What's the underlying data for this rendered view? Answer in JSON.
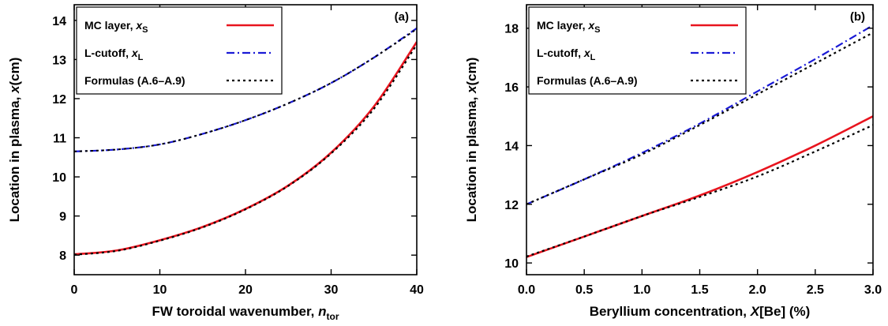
{
  "chart_data": [
    {
      "type": "line",
      "panel_label": "(a)",
      "xlabel": "FW toroidal wavenumber, ",
      "xlabel_var": "n",
      "xlabel_sub": "tor",
      "ylabel": "Location in plasma, ",
      "ylabel_var": "x",
      "ylabel_unit": "(cm)",
      "xlim": [
        0,
        40
      ],
      "ylim": [
        7.5,
        14.4
      ],
      "xticks": [
        "0",
        "10",
        "20",
        "30",
        "40"
      ],
      "xtick_values": [
        0,
        10,
        20,
        30,
        40
      ],
      "yticks": [
        "8",
        "9",
        "10",
        "11",
        "12",
        "13",
        "14"
      ],
      "ytick_values": [
        8,
        9,
        10,
        11,
        12,
        13,
        14
      ],
      "grid": false,
      "legend_position": "top-left",
      "x": [
        0,
        5,
        10,
        15,
        20,
        25,
        30,
        35,
        40
      ],
      "series": [
        {
          "name": "MC layer, ",
          "var": "x",
          "sub": "S",
          "color": "#e8141e",
          "style": "solid",
          "values": [
            8.02,
            8.12,
            8.38,
            8.72,
            9.18,
            9.78,
            10.62,
            11.8,
            13.45
          ]
        },
        {
          "name": "L-cutoff, ",
          "var": "x",
          "sub": "L",
          "color": "#1a1ad6",
          "style": "dashdot",
          "values": [
            10.65,
            10.7,
            10.83,
            11.1,
            11.45,
            11.88,
            12.4,
            13.05,
            13.8
          ]
        },
        {
          "name": "Formulas (A.6–A.9)",
          "var": "",
          "sub": "",
          "color": "#000000",
          "style": "dotted",
          "values": [
            8.01,
            8.11,
            8.37,
            8.71,
            9.17,
            9.77,
            10.6,
            11.74,
            13.38
          ]
        }
      ]
    },
    {
      "type": "line",
      "panel_label": "(b)",
      "xlabel": "Beryllium concentration, ",
      "xlabel_var": "X",
      "xlabel_sub": "",
      "xlabel_tail": "[Be] (%)",
      "ylabel": "Location in plasma, ",
      "ylabel_var": "x",
      "ylabel_unit": "(cm)",
      "xlim": [
        0,
        3
      ],
      "ylim": [
        9.6,
        18.8
      ],
      "xticks": [
        "0.0",
        "0.5",
        "1.0",
        "1.5",
        "2.0",
        "2.5",
        "3.0"
      ],
      "xtick_values": [
        0,
        0.5,
        1,
        1.5,
        2,
        2.5,
        3
      ],
      "yticks": [
        "10",
        "12",
        "14",
        "16",
        "18"
      ],
      "ytick_values": [
        10,
        12,
        14,
        16,
        18
      ],
      "grid": false,
      "legend_position": "top-left",
      "x": [
        0,
        0.5,
        1.0,
        1.5,
        2.0,
        2.5,
        3.0
      ],
      "series": [
        {
          "name": "MC layer, ",
          "var": "x",
          "sub": "S",
          "color": "#e8141e",
          "style": "solid",
          "values": [
            10.2,
            10.9,
            11.6,
            12.3,
            13.1,
            14.0,
            15.0
          ]
        },
        {
          "name": "L-cutoff, ",
          "var": "x",
          "sub": "L",
          "color": "#1a1ad6",
          "style": "dashdot",
          "values": [
            12.0,
            12.85,
            13.75,
            14.75,
            15.85,
            16.95,
            18.1
          ]
        },
        {
          "name": "Formulas (A.6–A.9)",
          "var": "",
          "sub": "",
          "color": "#000000",
          "style": "dotted",
          "values": [
            10.22,
            10.9,
            11.6,
            12.25,
            12.95,
            13.8,
            14.7
          ]
        }
      ],
      "extra_dotted_upper": [
        12.0,
        12.85,
        13.7,
        14.7,
        15.75,
        16.8,
        17.85
      ]
    }
  ]
}
